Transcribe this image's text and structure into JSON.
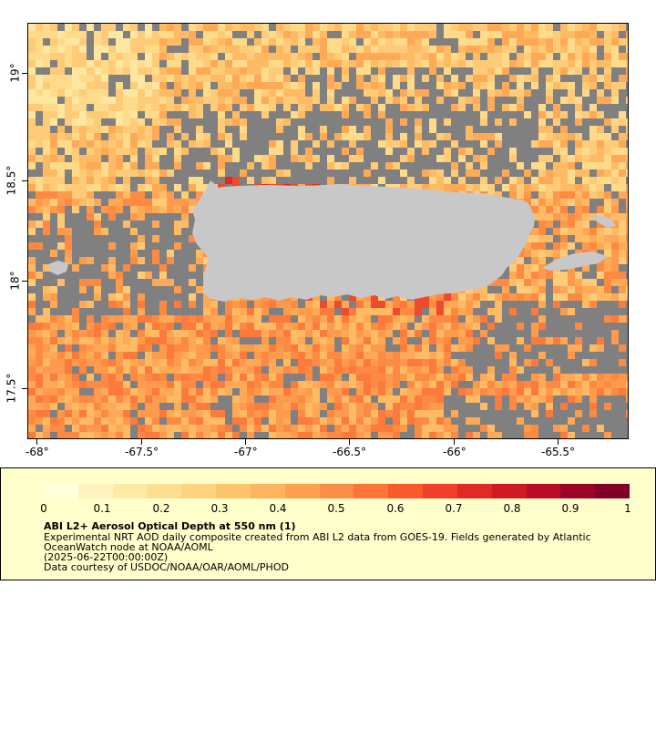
{
  "map": {
    "land_color": "#c8c8c8",
    "no_data_color": "#808080",
    "region": "Puerto Rico",
    "x_ticks": [
      "-68°",
      "-67.5°",
      "-67°",
      "-66.5°",
      "-66°",
      "-65.5°"
    ],
    "y_ticks": [
      "19°",
      "18.5°",
      "18°",
      "17.5°"
    ]
  },
  "legend": {
    "ticks": [
      "0",
      "0.1",
      "0.2",
      "0.3",
      "0.4",
      "0.5",
      "0.6",
      "0.7",
      "0.8",
      "0.9",
      "1"
    ],
    "colors": [
      "#ffffd9",
      "#fff4c0",
      "#ffeaa5",
      "#fedf90",
      "#fed380",
      "#fec56e",
      "#feb45e",
      "#fea14f",
      "#fd8c44",
      "#fc7438",
      "#f95a2c",
      "#f0402a",
      "#e12a26",
      "#cf1a24",
      "#b80d26",
      "#9b0427",
      "#800026"
    ],
    "title": "ABI L2+ Aerosol Optical Depth at 550 nm (1)",
    "description_line1": "Experimental NRT AOD daily composite created from ABI L2 data from GOES-19. Fields generated by Atlantic",
    "description_line2": "OceanWatch node at NOAA/AOML",
    "time": "(2025-06-22T00:00:00Z)",
    "credit": "Data courtesy of USDOC/NOAA/OAR/AOML/PHOD"
  }
}
